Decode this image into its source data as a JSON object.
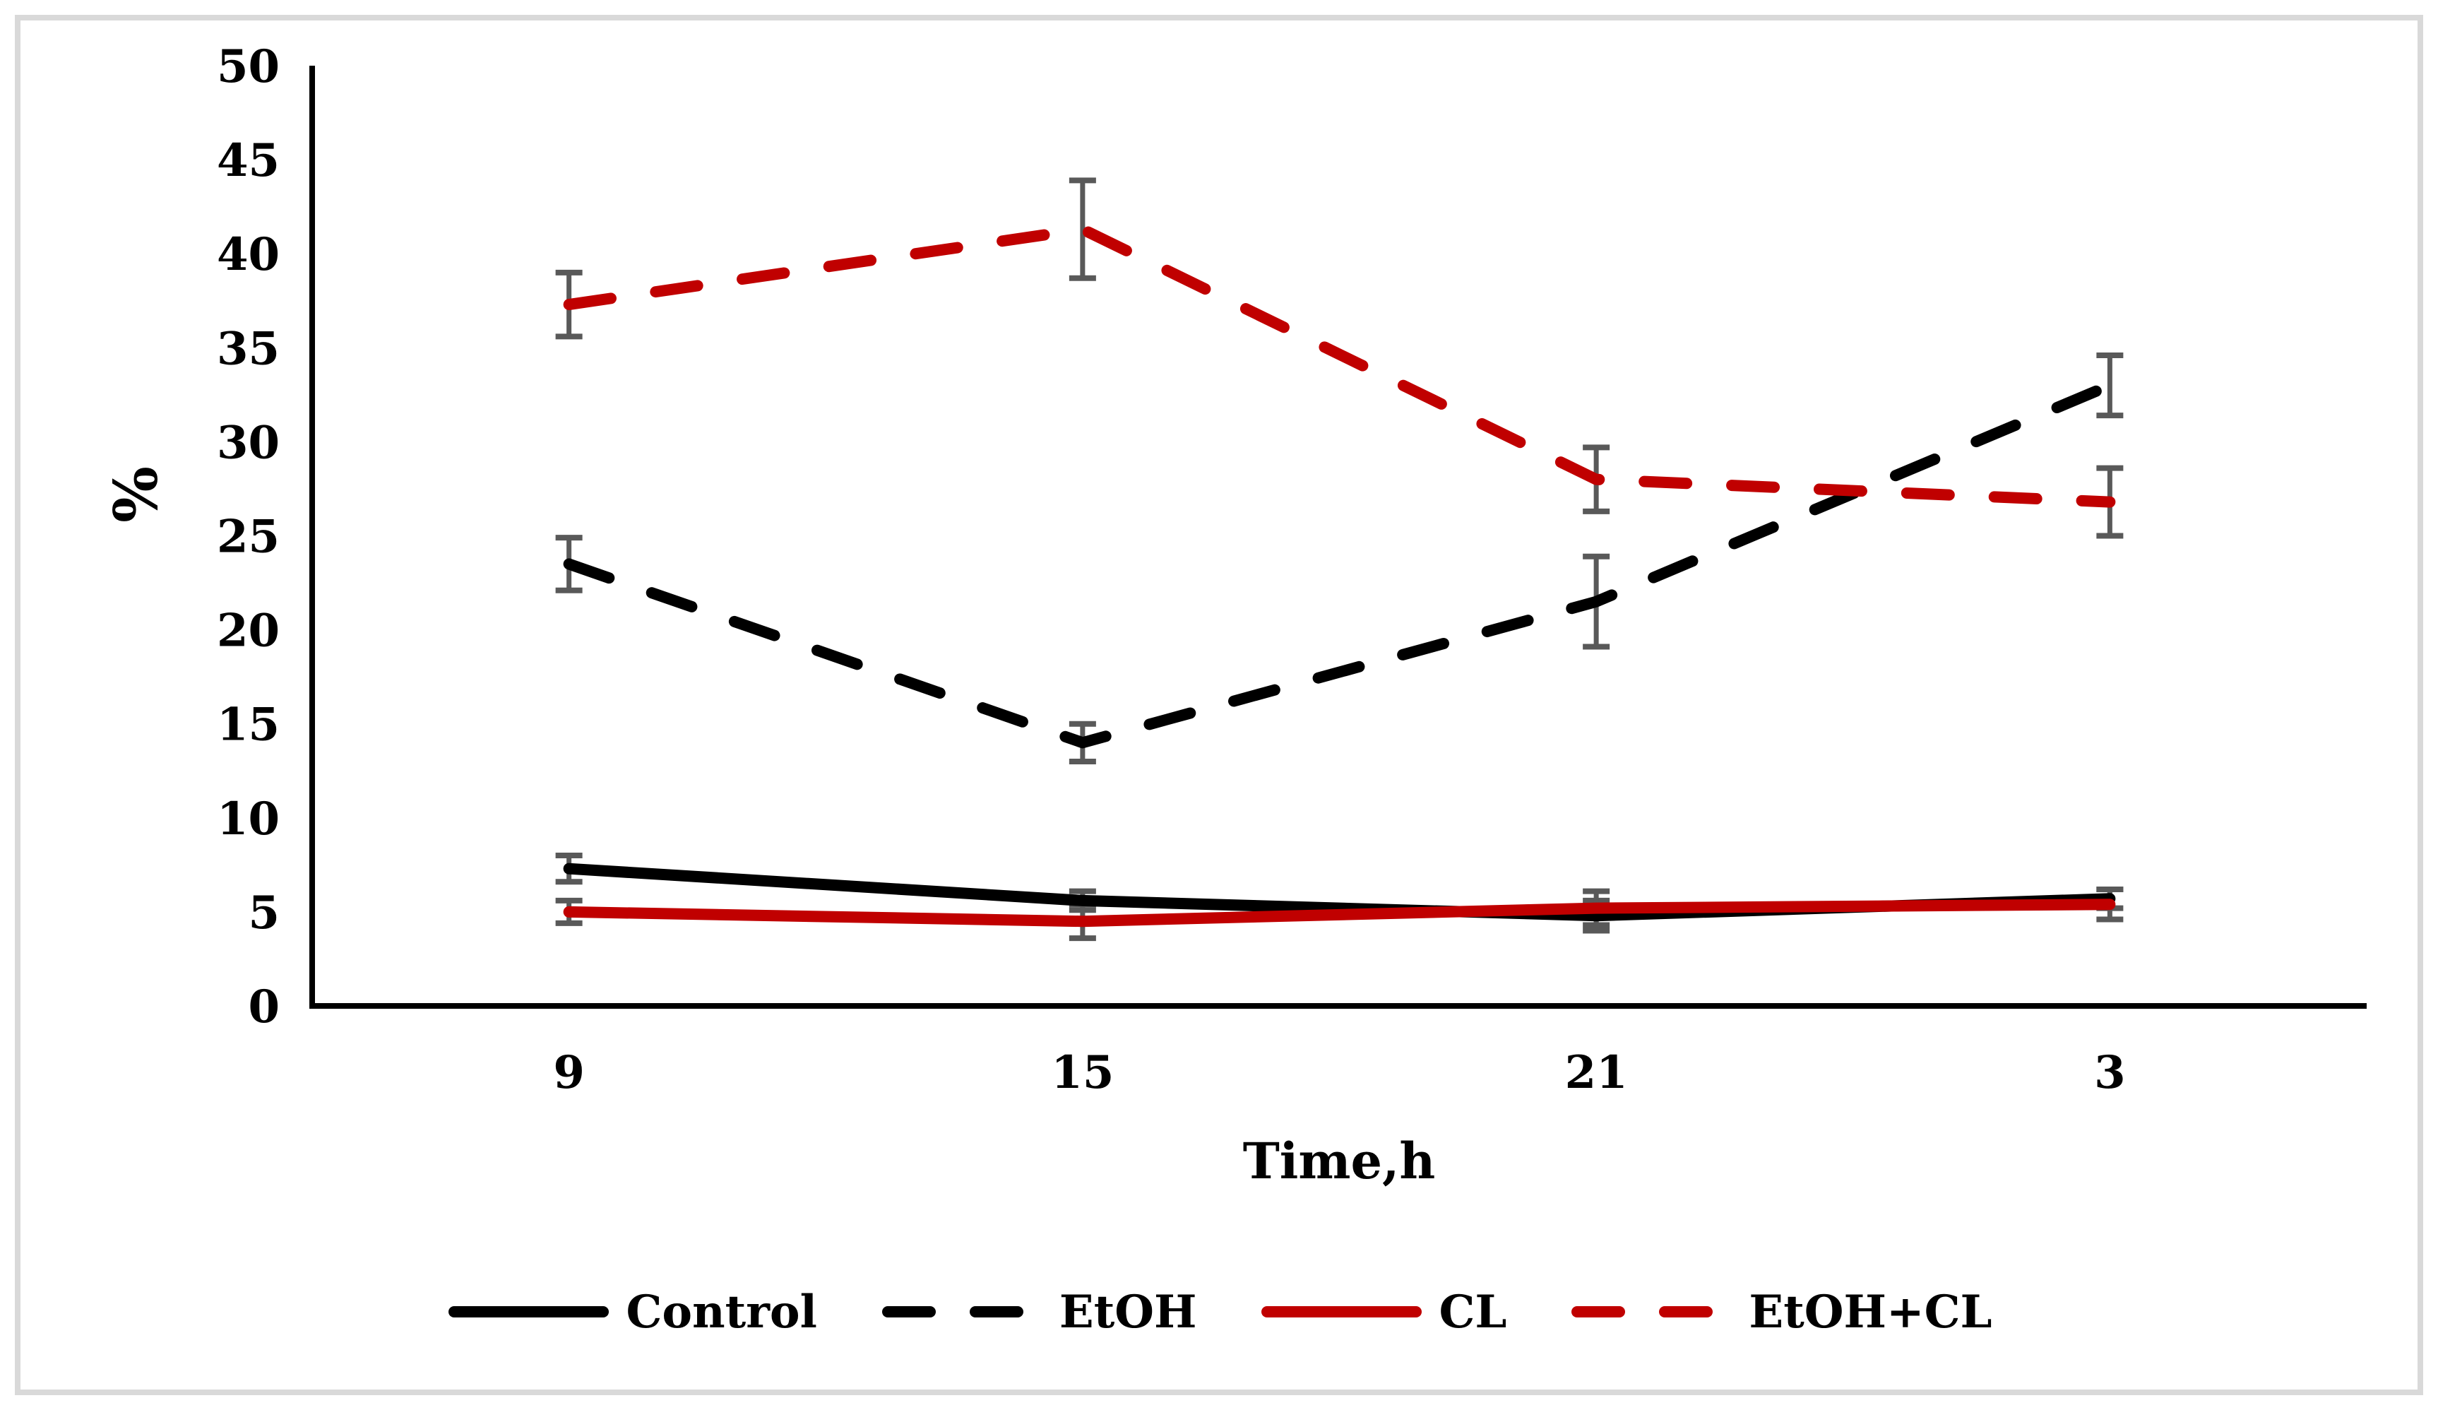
{
  "chart_data": {
    "type": "line",
    "title": "",
    "xlabel": "Time,h",
    "ylabel": "%",
    "categories": [
      "9",
      "15",
      "21",
      "3"
    ],
    "ylim": [
      0,
      50
    ],
    "yticks": [
      0,
      5,
      10,
      15,
      20,
      25,
      30,
      35,
      40,
      45,
      50
    ],
    "grid": false,
    "legend_position": "bottom",
    "error_bar_color": "#595959",
    "axis_color": "#000000",
    "series": [
      {
        "name": "Control",
        "color": "#000000",
        "dash": false,
        "values": [
          7.3,
          5.6,
          4.8,
          5.7
        ],
        "errors": [
          0.7,
          0.5,
          0.8,
          0.5
        ]
      },
      {
        "name": "EtOH",
        "color": "#000000",
        "dash": true,
        "values": [
          23.5,
          14.0,
          21.5,
          33.0
        ],
        "errors": [
          1.4,
          1.0,
          2.4,
          1.6
        ]
      },
      {
        "name": "CL",
        "color": "#c00000",
        "dash": false,
        "values": [
          5.0,
          4.5,
          5.2,
          5.4
        ],
        "errors": [
          0.6,
          0.9,
          0.9,
          0.8
        ]
      },
      {
        "name": "EtOH+CL",
        "color": "#c00000",
        "dash": true,
        "values": [
          37.3,
          41.3,
          28.0,
          26.8
        ],
        "errors": [
          1.7,
          2.6,
          1.7,
          1.8
        ]
      }
    ]
  }
}
